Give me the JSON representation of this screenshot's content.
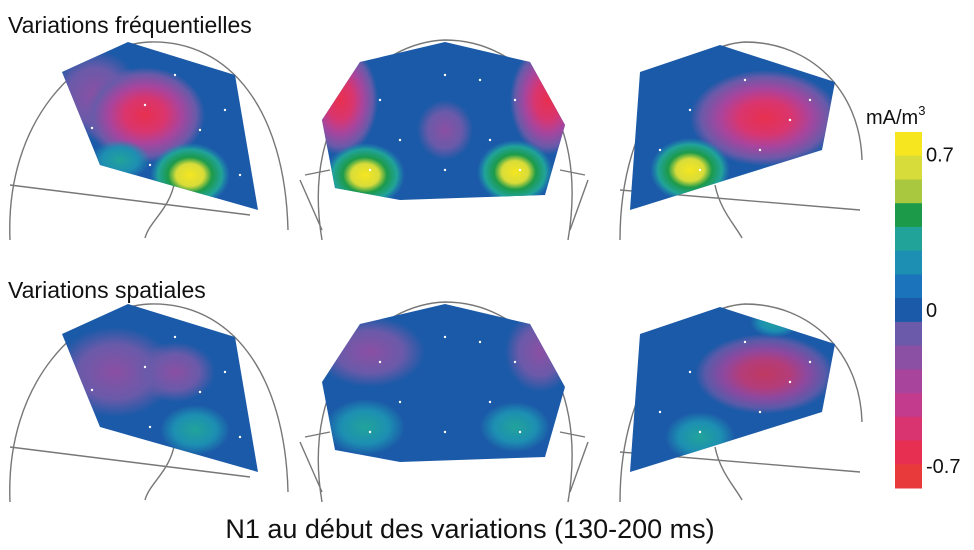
{
  "figure": {
    "row_titles": [
      "Variations fréquentielles",
      "Variations spatiales"
    ],
    "caption": "N1 au début des variations (130-200 ms)",
    "colorbar": {
      "unit": "mA/m",
      "unit_exponent": "3",
      "vlim": [
        -0.8,
        0.8
      ],
      "ticks": [
        0.7,
        0,
        -0.7
      ],
      "colors": [
        "#f5e620",
        "#d8dc3a",
        "#a9c83f",
        "#1c9a4a",
        "#21a39a",
        "#1d8fb2",
        "#1b74bb",
        "#1b5aa8",
        "#6a5aa9",
        "#8b4fa3",
        "#a9449d",
        "#c23b8d",
        "#d93470",
        "#e72f52",
        "#e83a3a"
      ]
    }
  }
}
